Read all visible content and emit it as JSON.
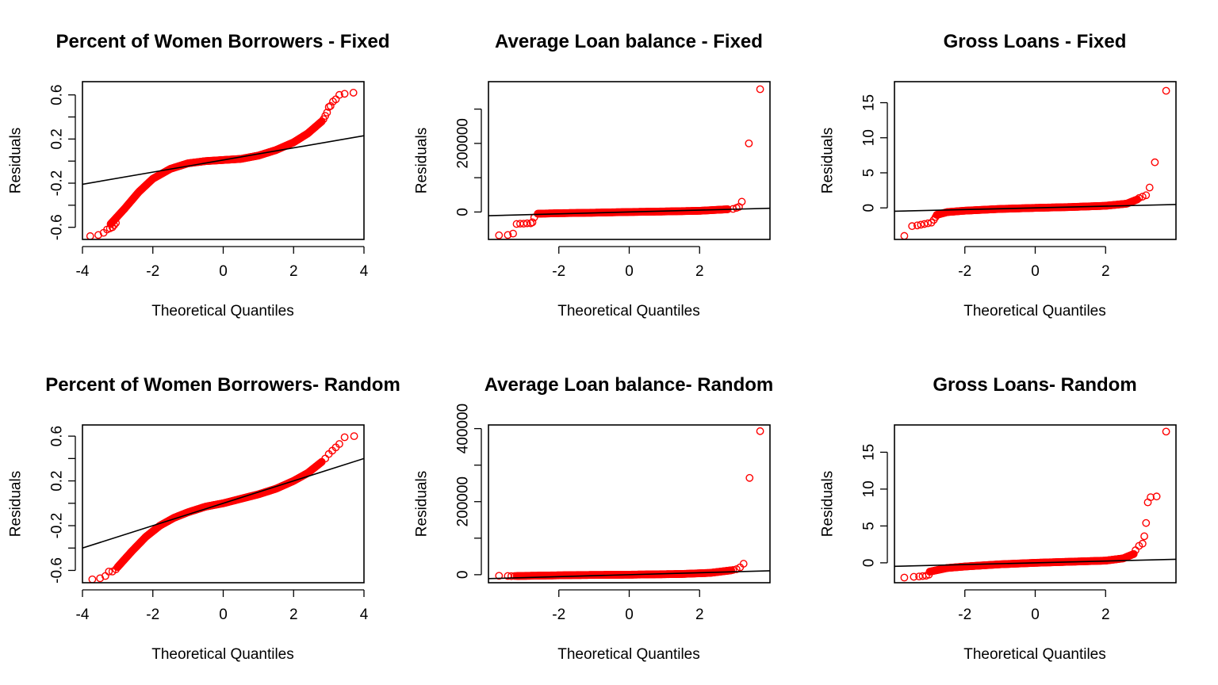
{
  "colors": {
    "points": "#ff0000",
    "line": "#000000",
    "axes": "#000000",
    "background": "#ffffff"
  },
  "chart_data": [
    {
      "type": "scatter",
      "title": "Percent of Women Borrowers - Fixed",
      "xlabel": "Theoretical Quantiles",
      "ylabel": "Residuals",
      "xlim": [
        -4,
        4
      ],
      "ylim": [
        -0.71,
        0.72
      ],
      "xticks": [
        -4,
        -2,
        0,
        2,
        4
      ],
      "xtick_labels": [
        "-4",
        "-2",
        "0",
        "2",
        "4"
      ],
      "yticks": [
        -0.6,
        -0.4,
        -0.2,
        0.0,
        0.2,
        0.4,
        0.6
      ],
      "ytick_labels": [
        "-0.6",
        "",
        "-0.2",
        "",
        "0.2",
        "",
        "0.6"
      ],
      "qq_line": {
        "slope": 0.055,
        "intercept": 0.01
      },
      "curve": [
        [
          -3.2,
          -0.57
        ],
        [
          -2.8,
          -0.43
        ],
        [
          -2.4,
          -0.28
        ],
        [
          -2.0,
          -0.16
        ],
        [
          -1.5,
          -0.07
        ],
        [
          -1.0,
          -0.02
        ],
        [
          -0.5,
          0.0
        ],
        [
          0.0,
          0.01
        ],
        [
          0.5,
          0.02
        ],
        [
          1.0,
          0.05
        ],
        [
          1.5,
          0.1
        ],
        [
          2.0,
          0.17
        ],
        [
          2.4,
          0.25
        ],
        [
          2.8,
          0.36
        ]
      ],
      "tail_points": [
        [
          -3.78,
          -0.68
        ],
        [
          -3.55,
          -0.67
        ],
        [
          -3.4,
          -0.65
        ],
        [
          -3.3,
          -0.62
        ],
        [
          -3.22,
          -0.61
        ],
        [
          -3.15,
          -0.6
        ],
        [
          -3.1,
          -0.58
        ],
        [
          -3.05,
          -0.56
        ],
        [
          2.85,
          0.38
        ],
        [
          2.9,
          0.41
        ],
        [
          2.95,
          0.44
        ],
        [
          3.0,
          0.49
        ],
        [
          3.05,
          0.5
        ],
        [
          3.12,
          0.54
        ],
        [
          3.2,
          0.56
        ],
        [
          3.3,
          0.6
        ],
        [
          3.45,
          0.61
        ],
        [
          3.7,
          0.62
        ]
      ]
    },
    {
      "type": "scatter",
      "title": "Average Loan balance - Fixed",
      "xlabel": "Theoretical Quantiles",
      "ylabel": "Residuals",
      "xlim": [
        -4,
        4
      ],
      "ylim": [
        -80000,
        380000
      ],
      "xticks": [
        -2,
        0,
        2
      ],
      "xtick_labels": [
        "-2",
        "0",
        "2"
      ],
      "yticks": [
        0,
        100000,
        200000,
        300000
      ],
      "ytick_labels": [
        "0",
        "",
        "200000",
        ""
      ],
      "qq_line": {
        "slope": 2700,
        "intercept": 0
      },
      "curve": [
        [
          -2.6,
          -5000
        ],
        [
          -2.0,
          -3500
        ],
        [
          -1.0,
          -2000
        ],
        [
          0.0,
          0
        ],
        [
          1.0,
          1500
        ],
        [
          2.0,
          3500
        ],
        [
          2.8,
          8000
        ]
      ],
      "tail_points": [
        [
          -3.7,
          -68000
        ],
        [
          -3.45,
          -67000
        ],
        [
          -3.3,
          -63000
        ],
        [
          -3.2,
          -35000
        ],
        [
          -3.1,
          -34000
        ],
        [
          -3.0,
          -34000
        ],
        [
          -2.9,
          -33000
        ],
        [
          -2.8,
          -33000
        ],
        [
          -2.75,
          -30000
        ],
        [
          -2.7,
          -16000
        ],
        [
          2.95,
          9000
        ],
        [
          3.05,
          12000
        ],
        [
          3.12,
          15000
        ],
        [
          3.2,
          30000
        ],
        [
          3.4,
          200000
        ],
        [
          3.72,
          358000
        ]
      ]
    },
    {
      "type": "scatter",
      "title": "Gross Loans - Fixed",
      "xlabel": "Theoretical Quantiles",
      "ylabel": "Residuals",
      "xlim": [
        -4,
        4
      ],
      "ylim": [
        -4.5,
        18
      ],
      "xticks": [
        -2,
        0,
        2
      ],
      "xtick_labels": [
        "-2",
        "0",
        "2"
      ],
      "yticks": [
        0,
        5,
        10,
        15
      ],
      "ytick_labels": [
        "0",
        "5",
        "10",
        "15"
      ],
      "qq_line": {
        "slope": 0.12,
        "intercept": 0
      },
      "curve": [
        [
          -2.8,
          -1.0
        ],
        [
          -2.5,
          -0.6
        ],
        [
          -2.0,
          -0.4
        ],
        [
          -1.0,
          -0.15
        ],
        [
          0.0,
          0.0
        ],
        [
          1.0,
          0.12
        ],
        [
          2.0,
          0.3
        ],
        [
          2.6,
          0.6
        ],
        [
          2.9,
          1.2
        ]
      ],
      "tail_points": [
        [
          -3.72,
          -4.0
        ],
        [
          -3.5,
          -2.6
        ],
        [
          -3.35,
          -2.5
        ],
        [
          -3.25,
          -2.4
        ],
        [
          -3.15,
          -2.3
        ],
        [
          -3.05,
          -2.2
        ],
        [
          -2.95,
          -2.1
        ],
        [
          -2.88,
          -1.7
        ],
        [
          -2.83,
          -1.3
        ],
        [
          2.95,
          1.4
        ],
        [
          3.05,
          1.6
        ],
        [
          3.15,
          1.8
        ],
        [
          3.25,
          2.9
        ],
        [
          3.4,
          6.5
        ],
        [
          3.72,
          16.7
        ]
      ]
    },
    {
      "type": "scatter",
      "title": "Percent of Women Borrowers- Random",
      "xlabel": "Theoretical Quantiles",
      "ylabel": "Residuals",
      "xlim": [
        -4,
        4
      ],
      "ylim": [
        -0.71,
        0.7
      ],
      "xticks": [
        -4,
        -2,
        0,
        2,
        4
      ],
      "xtick_labels": [
        "-4",
        "-2",
        "0",
        "2",
        "4"
      ],
      "yticks": [
        -0.6,
        -0.4,
        -0.2,
        0.0,
        0.2,
        0.4,
        0.6
      ],
      "ytick_labels": [
        "-0.6",
        "",
        "-0.2",
        "",
        "0.2",
        "",
        "0.6"
      ],
      "qq_line": {
        "slope": 0.1,
        "intercept": 0.0
      },
      "curve": [
        [
          -3.0,
          -0.57
        ],
        [
          -2.6,
          -0.43
        ],
        [
          -2.2,
          -0.3
        ],
        [
          -1.8,
          -0.2
        ],
        [
          -1.4,
          -0.13
        ],
        [
          -1.0,
          -0.08
        ],
        [
          -0.5,
          -0.03
        ],
        [
          0.0,
          0.0
        ],
        [
          0.5,
          0.04
        ],
        [
          1.0,
          0.08
        ],
        [
          1.5,
          0.13
        ],
        [
          2.0,
          0.2
        ],
        [
          2.4,
          0.27
        ],
        [
          2.8,
          0.37
        ]
      ],
      "tail_points": [
        [
          -3.72,
          -0.68
        ],
        [
          -3.5,
          -0.67
        ],
        [
          -3.35,
          -0.65
        ],
        [
          -3.25,
          -0.61
        ],
        [
          -3.15,
          -0.61
        ],
        [
          -3.05,
          -0.59
        ],
        [
          2.9,
          0.4
        ],
        [
          3.0,
          0.44
        ],
        [
          3.1,
          0.47
        ],
        [
          3.2,
          0.5
        ],
        [
          3.3,
          0.53
        ],
        [
          3.45,
          0.59
        ],
        [
          3.72,
          0.6
        ]
      ]
    },
    {
      "type": "scatter",
      "title": "Average Loan balance- Random",
      "xlabel": "Theoretical Quantiles",
      "ylabel": "Residuals",
      "xlim": [
        -4,
        4
      ],
      "ylim": [
        -22000,
        410000
      ],
      "xticks": [
        -2,
        0,
        2
      ],
      "xtick_labels": [
        "-2",
        "0",
        "2"
      ],
      "yticks": [
        0,
        100000,
        200000,
        300000,
        400000
      ],
      "ytick_labels": [
        "0",
        "",
        "200000",
        "",
        "400000"
      ],
      "qq_line": {
        "slope": 2700,
        "intercept": 0
      },
      "curve": [
        [
          -3.2,
          -3500
        ],
        [
          -2.5,
          -2500
        ],
        [
          -1.5,
          -1000
        ],
        [
          0.0,
          0
        ],
        [
          1.5,
          2000
        ],
        [
          2.3,
          5000
        ],
        [
          2.9,
          12000
        ]
      ],
      "tail_points": [
        [
          -3.7,
          -3000
        ],
        [
          -3.45,
          -3500
        ],
        [
          -3.35,
          -4000
        ],
        [
          -3.25,
          -3500
        ],
        [
          2.95,
          13000
        ],
        [
          3.05,
          15000
        ],
        [
          3.15,
          20000
        ],
        [
          3.25,
          30000
        ],
        [
          3.42,
          265000
        ],
        [
          3.72,
          393000
        ]
      ]
    },
    {
      "type": "scatter",
      "title": "Gross Loans- Random",
      "xlabel": "Theoretical Quantiles",
      "ylabel": "Residuals",
      "xlim": [
        -4,
        4
      ],
      "ylim": [
        -2.7,
        18.7
      ],
      "xticks": [
        -2,
        0,
        2
      ],
      "xtick_labels": [
        "-2",
        "0",
        "2"
      ],
      "yticks": [
        0,
        5,
        10,
        15
      ],
      "ytick_labels": [
        "0",
        "5",
        "10",
        "15"
      ],
      "qq_line": {
        "slope": 0.12,
        "intercept": 0
      },
      "curve": [
        [
          -3.0,
          -1.2
        ],
        [
          -2.5,
          -0.7
        ],
        [
          -2.0,
          -0.5
        ],
        [
          -1.0,
          -0.2
        ],
        [
          0.0,
          0.0
        ],
        [
          1.0,
          0.15
        ],
        [
          2.0,
          0.3
        ],
        [
          2.5,
          0.6
        ],
        [
          2.8,
          1.2
        ]
      ],
      "tail_points": [
        [
          -3.72,
          -2.0
        ],
        [
          -3.45,
          -1.9
        ],
        [
          -3.3,
          -1.85
        ],
        [
          -3.2,
          -1.8
        ],
        [
          -3.1,
          -1.75
        ],
        [
          -3.02,
          -1.6
        ],
        [
          2.85,
          1.7
        ],
        [
          2.95,
          2.3
        ],
        [
          3.05,
          2.6
        ],
        [
          3.1,
          3.6
        ],
        [
          3.15,
          5.4
        ],
        [
          3.2,
          8.2
        ],
        [
          3.28,
          8.9
        ],
        [
          3.45,
          9.0
        ],
        [
          3.72,
          17.8
        ]
      ]
    }
  ]
}
